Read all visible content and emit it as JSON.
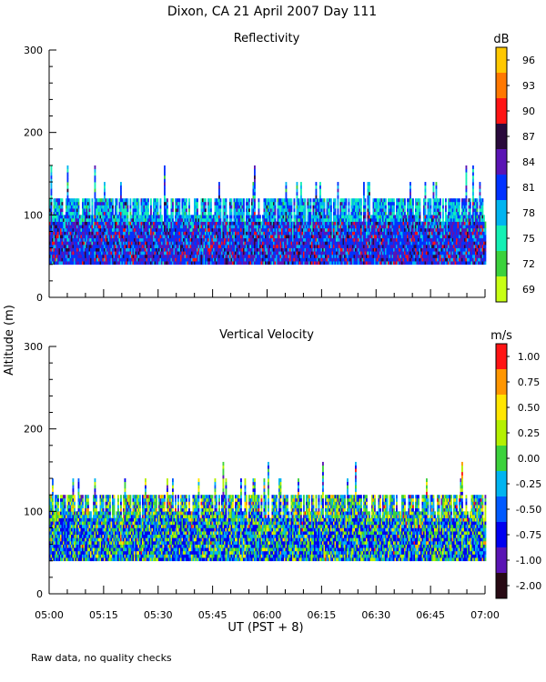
{
  "figure": {
    "title": "Dixon, CA 21 April 2007  Day 111",
    "ylabel": "Altitude (m)",
    "xlabel": "UT  (PST + 8)",
    "footnote": "Raw data, no quality checks",
    "x_tick_labels": [
      "05:00",
      "05:15",
      "05:30",
      "05:45",
      "06:00",
      "06:15",
      "06:30",
      "06:45",
      "07:00"
    ]
  },
  "chart_data": [
    {
      "type": "heatmap",
      "title": "Reflectivity",
      "xlabel": "UT  (PST + 8)",
      "ylabel": "Altitude (m)",
      "xlim": [
        0,
        120
      ],
      "x_unit": "minutes after 05:00 UT",
      "ylim": [
        0,
        300
      ],
      "y_ticks": [
        0,
        100,
        200,
        300
      ],
      "y_tick_labels": [
        "0",
        "100",
        "200",
        "300"
      ],
      "data_extent": {
        "altitude_min": 40,
        "altitude_typical_top": 120,
        "altitude_max": 160
      },
      "colorbar": {
        "unit": "dB",
        "labels": [
          "96",
          "93",
          "90",
          "87",
          "84",
          "81",
          "78",
          "75",
          "72",
          "69"
        ],
        "bands": [
          {
            "min": 67.5,
            "max": 70.5,
            "color": "#c8ff14"
          },
          {
            "min": 70.5,
            "max": 73.5,
            "color": "#3cd23c"
          },
          {
            "min": 73.5,
            "max": 76.5,
            "color": "#14f0b4"
          },
          {
            "min": 76.5,
            "max": 79.5,
            "color": "#00b4f0"
          },
          {
            "min": 79.5,
            "max": 82.5,
            "color": "#0032ff"
          },
          {
            "min": 82.5,
            "max": 85.5,
            "color": "#5a14b4"
          },
          {
            "min": 85.5,
            "max": 88.5,
            "color": "#2a0a3c"
          },
          {
            "min": 88.5,
            "max": 91.5,
            "color": "#ff1414"
          },
          {
            "min": 91.5,
            "max": 94.5,
            "color": "#ff7800"
          },
          {
            "min": 94.5,
            "max": 97.5,
            "color": "#ffc800"
          }
        ]
      },
      "field_weights": {
        "core": [
          0,
          0,
          0.1,
          1.2,
          3.6,
          2.6,
          0.9,
          0.8,
          0,
          0
        ],
        "top": [
          0,
          0.3,
          2.6,
          3.0,
          2.6,
          0.6,
          0.2,
          0,
          0,
          0
        ]
      }
    },
    {
      "type": "heatmap",
      "title": "Vertical Velocity",
      "xlabel": "UT  (PST + 8)",
      "ylabel": "Altitude (m)",
      "xlim": [
        0,
        120
      ],
      "x_unit": "minutes after 05:00 UT",
      "ylim": [
        0,
        300
      ],
      "y_ticks": [
        0,
        100,
        200,
        300
      ],
      "y_tick_labels": [
        "0",
        "100",
        "200",
        "300"
      ],
      "data_extent": {
        "altitude_min": 40,
        "altitude_typical_top": 120,
        "altitude_max": 160
      },
      "colorbar": {
        "unit": "m/s",
        "labels": [
          "1.00",
          "0.75",
          "0.50",
          "0.25",
          "0.00",
          "-0.25",
          "-0.50",
          "-0.75",
          "-1.00",
          "-2.00"
        ],
        "bands": [
          {
            "min": -2.0,
            "max": -1.0,
            "color": "#280a14"
          },
          {
            "min": -1.0,
            "max": -0.75,
            "color": "#5a14b4"
          },
          {
            "min": -0.75,
            "max": -0.5,
            "color": "#0000f0"
          },
          {
            "min": -0.5,
            "max": -0.25,
            "color": "#005aff"
          },
          {
            "min": -0.25,
            "max": 0.0,
            "color": "#00b4f0"
          },
          {
            "min": 0.0,
            "max": 0.25,
            "color": "#3cd23c"
          },
          {
            "min": 0.25,
            "max": 0.5,
            "color": "#b4f000"
          },
          {
            "min": 0.5,
            "max": 0.75,
            "color": "#ffe600"
          },
          {
            "min": 0.75,
            "max": 1.0,
            "color": "#ff9600"
          },
          {
            "min": 1.0,
            "max": 1.25,
            "color": "#ff1414"
          }
        ]
      },
      "field_weights": {
        "core": [
          0,
          0,
          3.5,
          1.5,
          1.8,
          1.6,
          1.2,
          0.4,
          0.1,
          0.05
        ],
        "top": [
          0,
          0.3,
          1.0,
          1.0,
          1.4,
          1.8,
          1.2,
          0.5,
          0.2,
          0.1
        ]
      }
    }
  ]
}
